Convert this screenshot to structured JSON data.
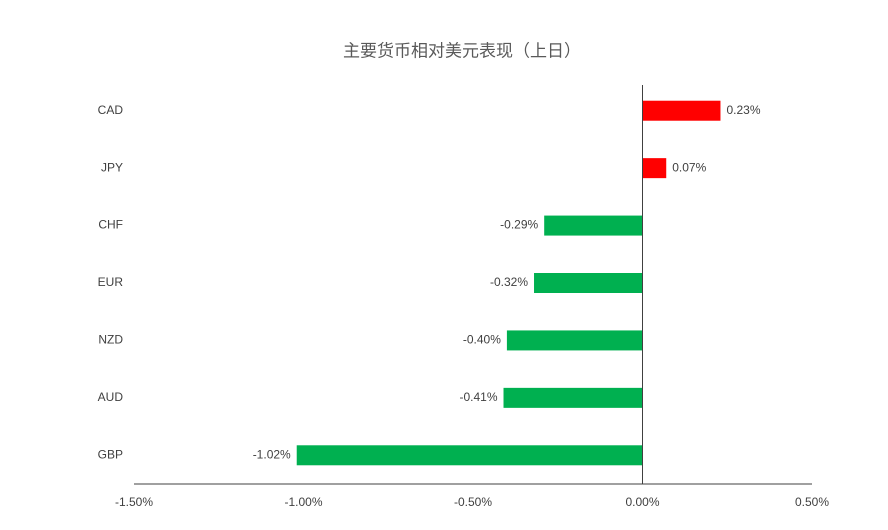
{
  "chart_data": {
    "type": "bar",
    "orientation": "horizontal",
    "title": "主要货币相对美元表现（上日）",
    "categories": [
      "CAD",
      "JPY",
      "CHF",
      "EUR",
      "NZD",
      "AUD",
      "GBP"
    ],
    "values": [
      0.23,
      0.07,
      -0.29,
      -0.32,
      -0.4,
      -0.41,
      -1.02
    ],
    "value_labels": [
      "0.23%",
      "0.07%",
      "-0.29%",
      "-0.32%",
      "-0.40%",
      "-0.41%",
      "-1.02%"
    ],
    "color_positive": "#ff0000",
    "color_negative": "#00b050",
    "xlim": [
      -1.5,
      0.5
    ],
    "xticks": [
      {
        "value": -1.5,
        "label": "-1.50%"
      },
      {
        "value": -1.0,
        "label": "-1.00%"
      },
      {
        "value": -0.5,
        "label": "-0.50%"
      },
      {
        "value": 0,
        "label": "0.00%"
      },
      {
        "value": 0.5,
        "label": "0.50%"
      }
    ],
    "grid": false
  }
}
